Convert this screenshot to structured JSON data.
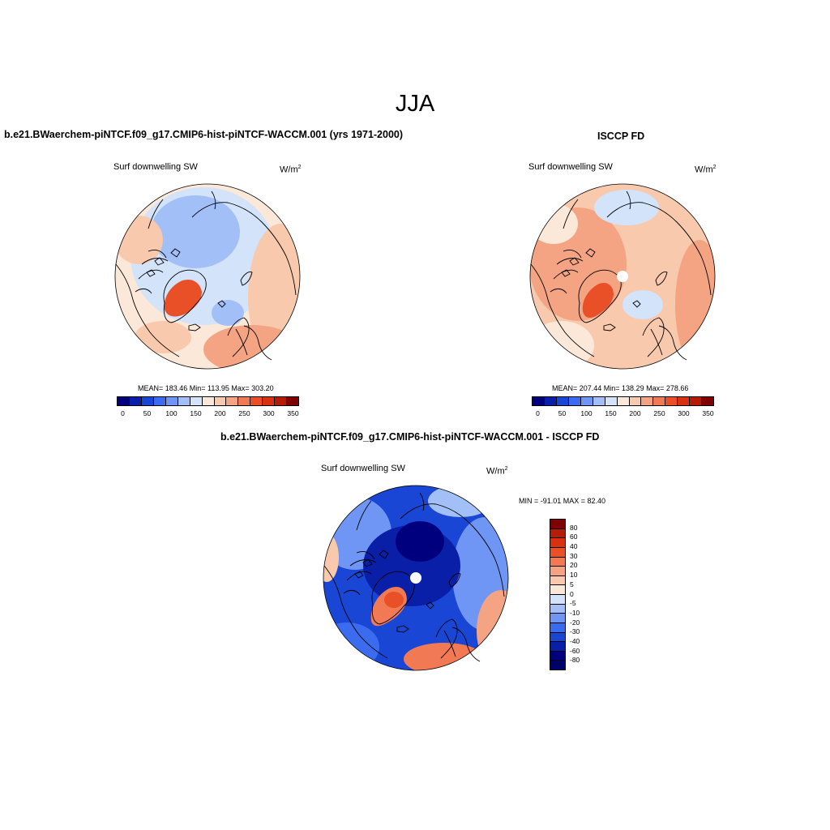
{
  "figure": {
    "season_title": "JJA"
  },
  "panels": {
    "model": {
      "title": "b.e21.BWaerchem-piNTCF.f09_g17.CMIP6-hist-piNTCF-WACCM.001 (yrs 1971-2000)",
      "variable": "Surf downwelling SW",
      "units_base": "W/m",
      "units_exp": "2",
      "stats": "MEAN= 183.46  Min= 113.95  Max= 303.20",
      "mean": 183.46,
      "min": 113.95,
      "max": 303.2
    },
    "obs": {
      "title": "ISCCP FD",
      "variable": "Surf downwelling SW",
      "units_base": "W/m",
      "units_exp": "2",
      "stats": "MEAN= 207.44  Min= 138.29  Max= 278.66",
      "mean": 207.44,
      "min": 138.29,
      "max": 278.66
    },
    "diff": {
      "title": "b.e21.BWaerchem-piNTCF.f09_g17.CMIP6-hist-piNTCF-WACCM.001 - ISCCP FD",
      "variable": "Surf downwelling SW",
      "units_base": "W/m",
      "units_exp": "2",
      "stats": "MIN = -91.01 MAX =  82.40",
      "min": -91.01,
      "max": 82.4
    }
  },
  "colorbars": {
    "abs": {
      "labels": [
        "0",
        "50",
        "100",
        "150",
        "200",
        "250",
        "300",
        "350"
      ],
      "colors": [
        "#00007f",
        "#0a1fa8",
        "#1a46d6",
        "#3b6cf0",
        "#6f96f5",
        "#a3bff7",
        "#d3e3fa",
        "#fbe8d8",
        "#f8c9ad",
        "#f4a482",
        "#f17a55",
        "#ea5027",
        "#d8310f",
        "#b51c08",
        "#7f0000"
      ]
    },
    "diff": {
      "labels": [
        "80",
        "60",
        "40",
        "30",
        "20",
        "10",
        "5",
        "0",
        "-5",
        "-10",
        "-20",
        "-30",
        "-40",
        "-60",
        "-80"
      ],
      "colors": [
        "#7f0000",
        "#b51c08",
        "#d8310f",
        "#ea5027",
        "#f17a55",
        "#f4a482",
        "#f8c9ad",
        "#fbe8d8",
        "#d3e3fa",
        "#a3bff7",
        "#6f96f5",
        "#3b6cf0",
        "#1a46d6",
        "#0a1fa8",
        "#00007f",
        "#00006a"
      ]
    }
  },
  "chart_data": [
    {
      "type": "heatmap",
      "title": "b.e21.BWaerchem-piNTCF.f09_g17.CMIP6-hist-piNTCF-WACCM.001 (yrs 1971-2000)",
      "variable": "Surf downwelling SW",
      "units": "W/m2",
      "projection": "north polar stereographic",
      "mean": 183.46,
      "min": 113.95,
      "max": 303.2,
      "levels": [
        0,
        50,
        100,
        150,
        200,
        250,
        300,
        350
      ]
    },
    {
      "type": "heatmap",
      "title": "ISCCP FD",
      "variable": "Surf downwelling SW",
      "units": "W/m2",
      "projection": "north polar stereographic",
      "mean": 207.44,
      "min": 138.29,
      "max": 278.66,
      "levels": [
        0,
        50,
        100,
        150,
        200,
        250,
        300,
        350
      ]
    },
    {
      "type": "heatmap",
      "title": "b.e21.BWaerchem-piNTCF.f09_g17.CMIP6-hist-piNTCF-WACCM.001 - ISCCP FD",
      "variable": "Surf downwelling SW",
      "units": "W/m2",
      "projection": "north polar stereographic",
      "min": -91.01,
      "max": 82.4,
      "levels": [
        -80,
        -60,
        -40,
        -30,
        -20,
        -10,
        -5,
        0,
        5,
        10,
        20,
        30,
        40,
        60,
        80
      ]
    }
  ]
}
